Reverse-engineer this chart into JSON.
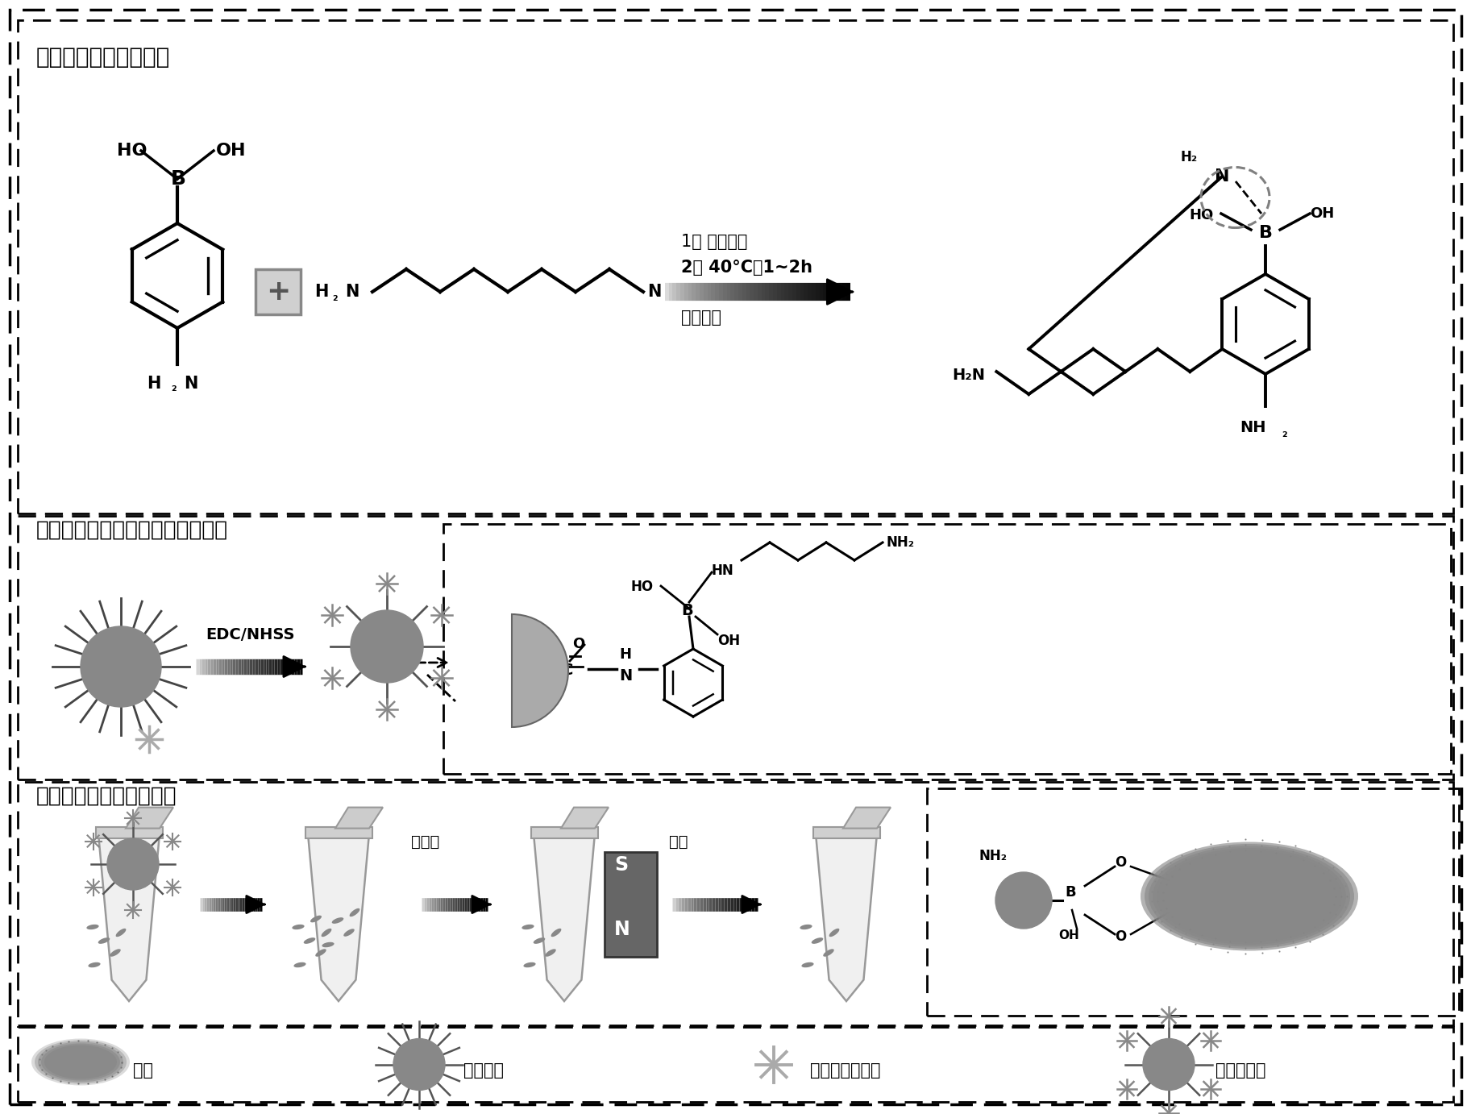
{
  "bg_color": "#ffffff",
  "section1_title": "伍尔夫型苯垈酸的制备",
  "section2_title": "伍尔夫型苯垈酸功能化磁珠的制备",
  "section3_title": "样本中细菌的磁分离步骤",
  "legend_items": [
    "细菌",
    "纳米磁珠",
    "伍尔夫型苯垈酸",
    "功能化磁珠"
  ],
  "cond1": "1） 四氢呵嗅",
  "cond2": "2） 40°C，1~2h",
  "cond3": "磁力搨拌",
  "edc_label": "EDC/NHSS",
  "magsep": "磁分离",
  "enrich": "富集"
}
